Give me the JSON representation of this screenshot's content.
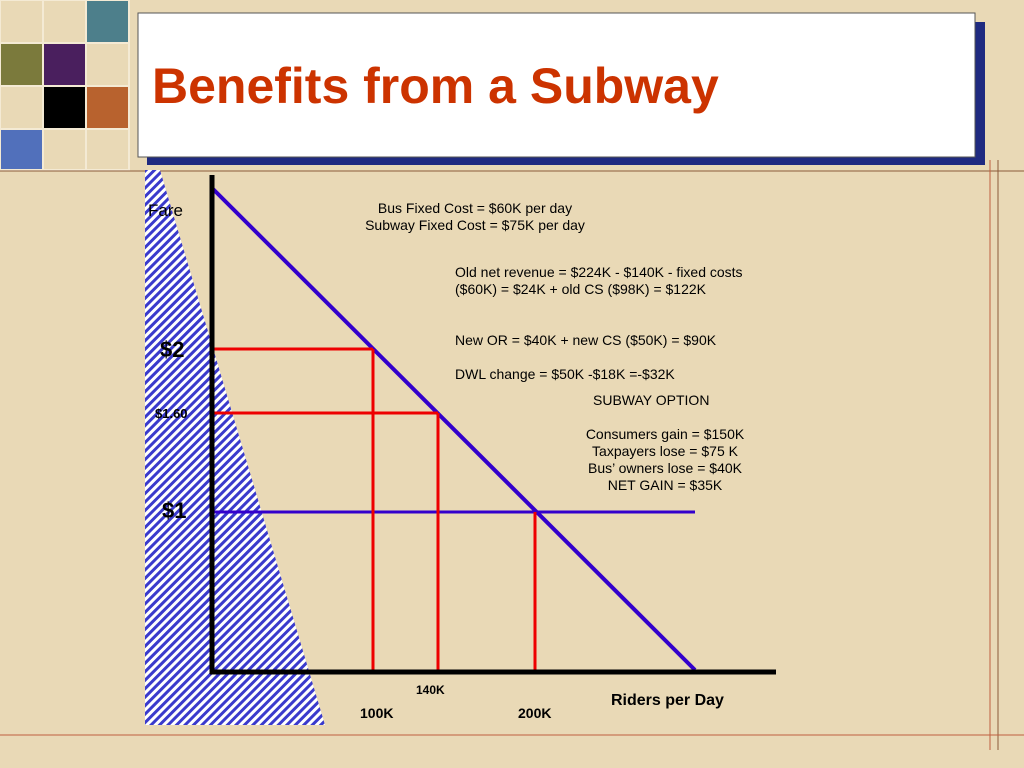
{
  "title": "Benefits from a Subway",
  "diagram": {
    "y_axis_label": "Fare",
    "x_axis_label": "Riders per Day",
    "price_labels": [
      "$2",
      "$1.60",
      "$1"
    ],
    "quantity_labels": [
      "100K",
      "140K",
      "200K"
    ],
    "fixed_costs": [
      "Bus Fixed Cost =  $60K per day",
      "Subway Fixed Cost =  $75K per day"
    ],
    "notes": [
      "Old  net revenue = $224K - $140K - fixed costs ($60K) =  $24K + old CS ($98K) = $122K",
      "New OR = $40K + new CS ($50K) = $90K",
      "DWL change = $50K -$18K =-$32K"
    ],
    "subway_option": {
      "heading": "SUBWAY OPTION",
      "lines": [
        "Consumers gain = $150K",
        "Taxpayers lose = $75 K",
        "Bus’ owners lose = $40K",
        "NET GAIN = $35K"
      ]
    }
  }
}
